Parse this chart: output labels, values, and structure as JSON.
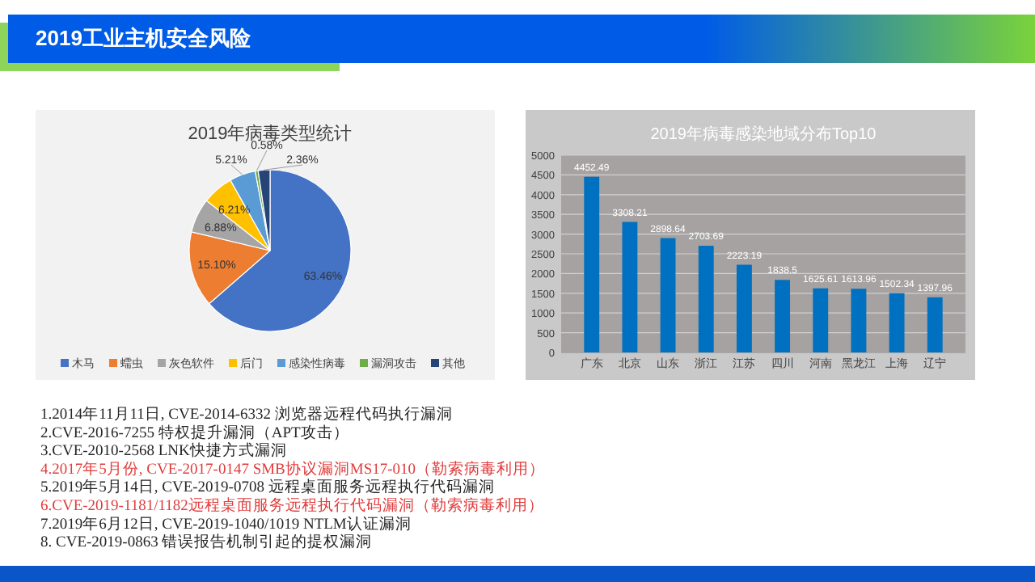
{
  "chart_data": [
    {
      "type": "pie",
      "title": "2019年病毒类型统计",
      "categories": [
        "木马",
        "蠕虫",
        "灰色软件",
        "后门",
        "感染性病毒",
        "漏洞攻击",
        "其他"
      ],
      "values": [
        63.46,
        15.1,
        6.88,
        6.21,
        5.21,
        0.58,
        2.36
      ],
      "value_labels": [
        "63.46%",
        "15.10%",
        "6.88%",
        "6.21%",
        "5.21%",
        "0.58%",
        "2.36%"
      ],
      "colors": [
        "#4472c4",
        "#ed7d31",
        "#a5a5a5",
        "#ffc000",
        "#5b9bd5",
        "#70ad47",
        "#264478"
      ],
      "legend": "bottom"
    },
    {
      "type": "bar",
      "title": "2019年病毒感染地域分布Top10",
      "categories": [
        "广东",
        "北京",
        "山东",
        "浙江",
        "江苏",
        "四川",
        "河南",
        "黑龙江",
        "上海",
        "辽宁"
      ],
      "values": [
        4452.49,
        3308.21,
        2898.64,
        2703.69,
        2223.19,
        1838.5,
        1625.61,
        1613.96,
        1502.34,
        1397.96
      ],
      "color": "#0070c0",
      "ylim": [
        0,
        5000
      ],
      "yticks": [
        0,
        500,
        1000,
        1500,
        2000,
        2500,
        3000,
        3500,
        4000,
        4500,
        5000
      ],
      "grid": "y",
      "data_labels": true
    },
    {
      "type": "other",
      "title": "2019工业主机安全风险",
      "annotations": [
        "1.2014年11月11日, CVE-2014-6332 浏览器远程代码执行漏洞",
        "2.CVE-2016-7255 特权提升漏洞（APT攻击）",
        "3.CVE-2010-2568 LNK快捷方式漏洞",
        "4.2017年5月份, CVE-2017-0147 SMB协议漏洞MS17-010（勒索病毒利用）",
        "5.2019年5月14日, CVE-2019-0708 远程桌面服务远程执行代码漏洞",
        "6.CVE-2019-1181/1182远程桌面服务远程执行代码漏洞（勒索病毒利用）",
        "7.2019年6月12日, CVE-2019-1040/1019 NTLM认证漏洞",
        "8. CVE-2019-0863 错误报告机制引起的提权漏洞"
      ],
      "colors": [
        "#262626",
        "#262626",
        "#262626",
        "#e03c3c",
        "#262626",
        "#e03c3c",
        "#262626",
        "#262626"
      ]
    }
  ]
}
